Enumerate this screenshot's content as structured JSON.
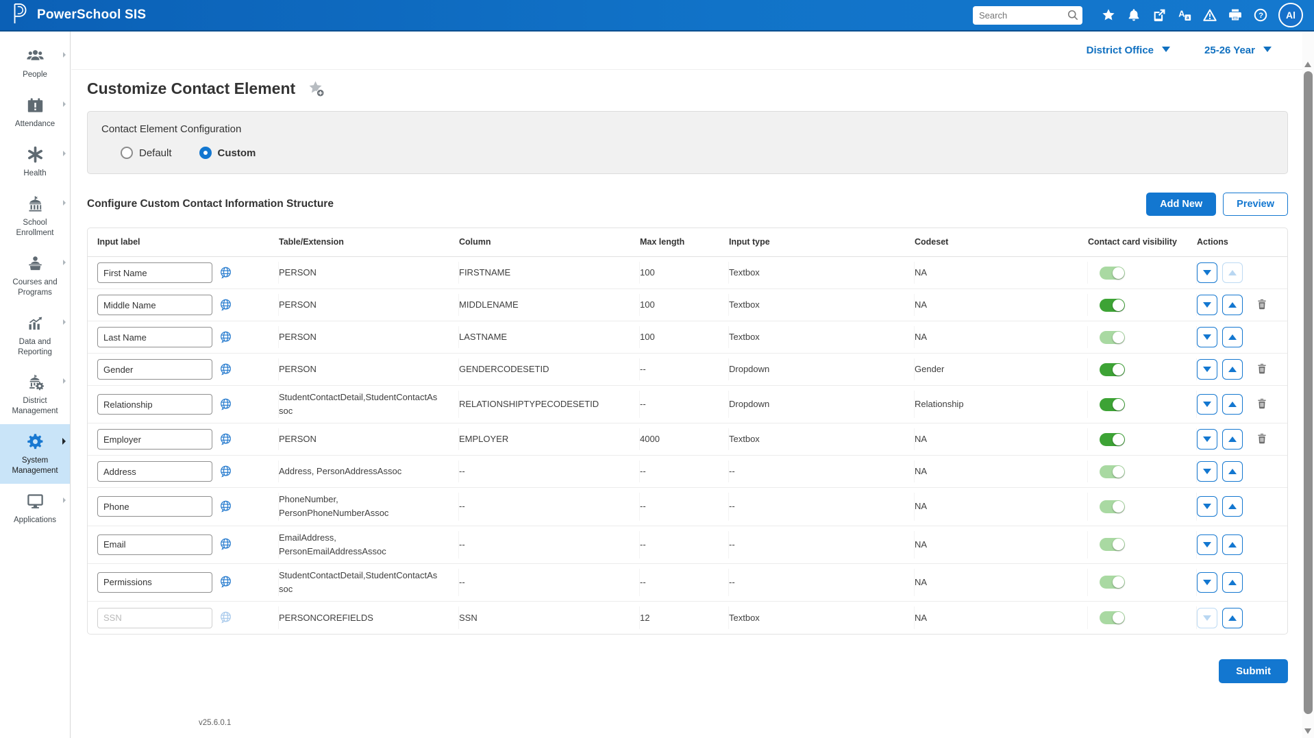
{
  "navbar": {
    "brand": "PowerSchool SIS",
    "search_placeholder": "Search",
    "icons": [
      "star-icon",
      "bell-icon",
      "compose-icon",
      "translate-icon",
      "warning-icon",
      "printer-icon",
      "help-icon"
    ],
    "avatar_initials": "Al"
  },
  "context_bar": {
    "org_selector": "District Office",
    "year_selector": "25-26 Year"
  },
  "sidebar": {
    "items": [
      {
        "label": "People",
        "icon": "people-icon",
        "active": false
      },
      {
        "label": "Attendance",
        "icon": "attendance-icon",
        "active": false
      },
      {
        "label": "Health",
        "icon": "health-icon",
        "active": false
      },
      {
        "label": "School Enrollment",
        "icon": "school-enrollment-icon",
        "active": false
      },
      {
        "label": "Courses and Programs",
        "icon": "courses-icon",
        "active": false
      },
      {
        "label": "Data and Reporting",
        "icon": "data-reporting-icon",
        "active": false
      },
      {
        "label": "District Management",
        "icon": "district-management-icon",
        "active": false
      },
      {
        "label": "System Management",
        "icon": "system-management-icon",
        "active": true
      },
      {
        "label": "Applications",
        "icon": "applications-icon",
        "active": false
      }
    ]
  },
  "page": {
    "title": "Customize Contact Element",
    "config_panel": {
      "title": "Contact Element Configuration",
      "options": [
        {
          "label": "Default",
          "selected": false
        },
        {
          "label": "Custom",
          "selected": true
        }
      ]
    },
    "section": {
      "title": "Configure Custom Contact Information Structure",
      "add_new_label": "Add New",
      "preview_label": "Preview"
    },
    "table": {
      "headers": [
        "Input label",
        "Table/Extension",
        "Column",
        "Max length",
        "Input type",
        "Codeset",
        "Contact card visibility",
        "Actions"
      ],
      "rows": [
        {
          "label": "First Name",
          "input_disabled": false,
          "table_extension": "PERSON",
          "column": "FIRSTNAME",
          "max_length": "100",
          "input_type": "Textbox",
          "codeset": "NA",
          "visibility_on": true,
          "visibility_muted": true,
          "down_enabled": true,
          "up_enabled": false,
          "deletable": false
        },
        {
          "label": "Middle Name",
          "input_disabled": false,
          "table_extension": "PERSON",
          "column": "MIDDLENAME",
          "max_length": "100",
          "input_type": "Textbox",
          "codeset": "NA",
          "visibility_on": true,
          "visibility_muted": false,
          "down_enabled": true,
          "up_enabled": true,
          "deletable": true
        },
        {
          "label": "Last Name",
          "input_disabled": false,
          "table_extension": "PERSON",
          "column": "LASTNAME",
          "max_length": "100",
          "input_type": "Textbox",
          "codeset": "NA",
          "visibility_on": true,
          "visibility_muted": true,
          "down_enabled": true,
          "up_enabled": true,
          "deletable": false
        },
        {
          "label": "Gender",
          "input_disabled": false,
          "table_extension": "PERSON",
          "column": "GENDERCODESETID",
          "max_length": "--",
          "input_type": "Dropdown",
          "codeset": "Gender",
          "visibility_on": true,
          "visibility_muted": false,
          "down_enabled": true,
          "up_enabled": true,
          "deletable": true
        },
        {
          "label": "Relationship",
          "input_disabled": false,
          "table_extension": "StudentContactDetail,StudentContactAssoc",
          "column": "RELATIONSHIPTYPECODESETID",
          "max_length": "--",
          "input_type": "Dropdown",
          "codeset": "Relationship",
          "visibility_on": true,
          "visibility_muted": false,
          "down_enabled": true,
          "up_enabled": true,
          "deletable": true
        },
        {
          "label": "Employer",
          "input_disabled": false,
          "table_extension": "PERSON",
          "column": "EMPLOYER",
          "max_length": "4000",
          "input_type": "Textbox",
          "codeset": "NA",
          "visibility_on": true,
          "visibility_muted": false,
          "down_enabled": true,
          "up_enabled": true,
          "deletable": true
        },
        {
          "label": "Address",
          "input_disabled": false,
          "table_extension": "Address, PersonAddressAssoc",
          "column": "--",
          "max_length": "--",
          "input_type": "--",
          "codeset": "NA",
          "visibility_on": true,
          "visibility_muted": true,
          "down_enabled": true,
          "up_enabled": true,
          "deletable": false
        },
        {
          "label": "Phone",
          "input_disabled": false,
          "table_extension": "PhoneNumber, PersonPhoneNumberAssoc",
          "column": "--",
          "max_length": "--",
          "input_type": "--",
          "codeset": "NA",
          "visibility_on": true,
          "visibility_muted": true,
          "down_enabled": true,
          "up_enabled": true,
          "deletable": false
        },
        {
          "label": "Email",
          "input_disabled": false,
          "table_extension": "EmailAddress, PersonEmailAddressAssoc",
          "column": "--",
          "max_length": "--",
          "input_type": "--",
          "codeset": "NA",
          "visibility_on": true,
          "visibility_muted": true,
          "down_enabled": true,
          "up_enabled": true,
          "deletable": false
        },
        {
          "label": "Permissions",
          "input_disabled": false,
          "table_extension": "StudentContactDetail,StudentContactAssoc",
          "column": "--",
          "max_length": "--",
          "input_type": "--",
          "codeset": "NA",
          "visibility_on": true,
          "visibility_muted": true,
          "down_enabled": true,
          "up_enabled": true,
          "deletable": false
        },
        {
          "label": "SSN",
          "input_disabled": true,
          "table_extension": "PERSONCOREFIELDS",
          "column": "SSN",
          "max_length": "12",
          "input_type": "Textbox",
          "codeset": "NA",
          "visibility_on": true,
          "visibility_muted": true,
          "down_enabled": false,
          "up_enabled": true,
          "deletable": false
        }
      ]
    },
    "submit_label": "Submit",
    "version": "v25.6.0.1"
  },
  "colors": {
    "accent": "#1377D0",
    "nav_blue": "#0F6CC4",
    "toggle_on": "#3DA335",
    "toggle_on_muted": "#A9D9A2",
    "active_sidebar_bg": "#C9E4F8"
  }
}
